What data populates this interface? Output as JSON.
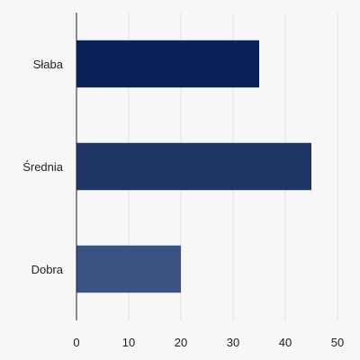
{
  "chart_data": {
    "type": "bar",
    "orientation": "horizontal",
    "categories": [
      "Słaba",
      "Średnia",
      "Dobra"
    ],
    "values": [
      35,
      45,
      20
    ],
    "colors": [
      "#0a2257",
      "#1e3566",
      "#3a5383"
    ],
    "xlim": [
      0,
      50
    ],
    "xticks": [
      0,
      10,
      20,
      30,
      40,
      50
    ],
    "grid": "vertical",
    "title": "",
    "xlabel": "",
    "ylabel": ""
  },
  "colors": {
    "background": "#f7f7f7",
    "grid": "#e3e3e3",
    "axis": "#222222"
  }
}
